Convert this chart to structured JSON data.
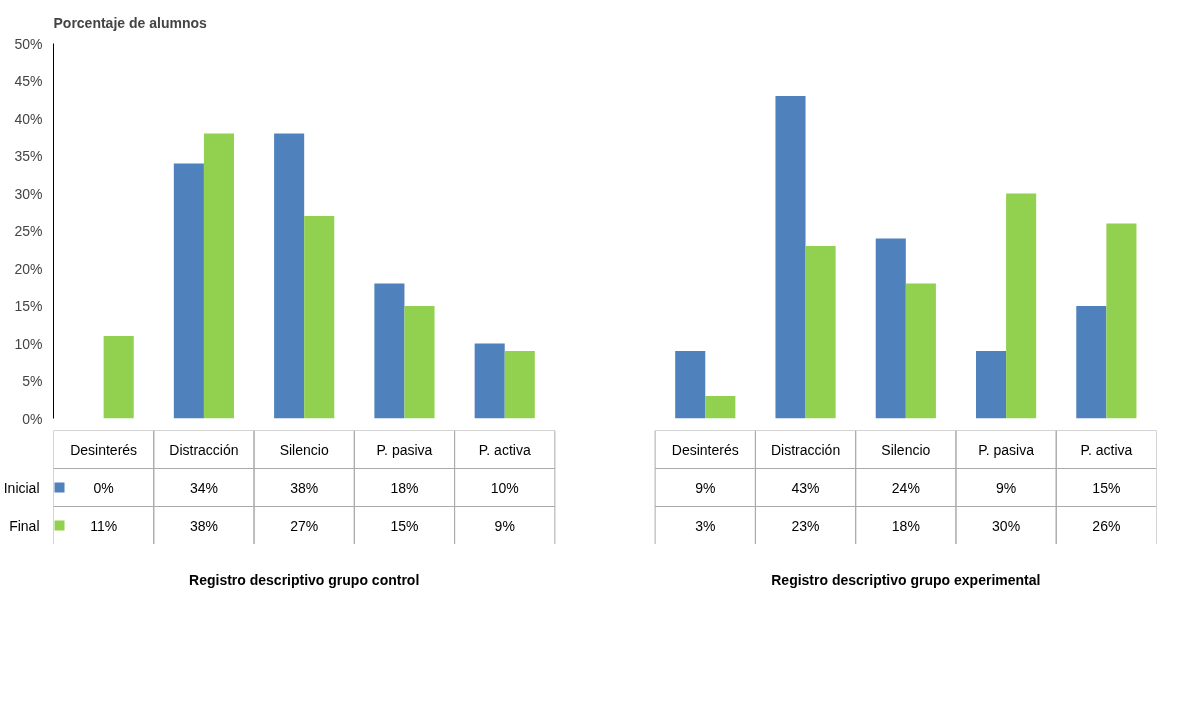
{
  "chart_data": {
    "type": "bar",
    "title": "Porcentaje de alumnos",
    "categories": [
      "Desinterés",
      "Distracción",
      "Silencio",
      "P. pasiva",
      "P. activa",
      null,
      "Desinterés",
      "Distracción",
      "Silencio",
      "P. pasiva",
      "P. activa"
    ],
    "series": [
      {
        "name": "Inicial",
        "color": "#4f81bd",
        "values": [
          0,
          34,
          38,
          18,
          10,
          null,
          9,
          43,
          24,
          9,
          15
        ],
        "value_labels": [
          "0%",
          "34%",
          "38%",
          "18%",
          "10%",
          null,
          "9%",
          "43%",
          "24%",
          "9%",
          "15%"
        ]
      },
      {
        "name": "Final",
        "color": "#92d050",
        "values": [
          11,
          38,
          27,
          15,
          9,
          null,
          3,
          23,
          18,
          30,
          26
        ],
        "value_labels": [
          "11%",
          "38%",
          "27%",
          "15%",
          "9%",
          null,
          "3%",
          "23%",
          "18%",
          "30%",
          "26%"
        ]
      }
    ],
    "ylim": [
      0,
      50
    ],
    "yticks": [
      {
        "value": 0,
        "label": "0%"
      },
      {
        "value": 5,
        "label": "5%"
      },
      {
        "value": 10,
        "label": "10%"
      },
      {
        "value": 15,
        "label": "15%"
      },
      {
        "value": 20,
        "label": "20%"
      },
      {
        "value": 25,
        "label": "25%"
      },
      {
        "value": 30,
        "label": "30%"
      },
      {
        "value": 35,
        "label": "35%"
      },
      {
        "value": 40,
        "label": "40%"
      },
      {
        "value": 45,
        "label": "45%"
      },
      {
        "value": 50,
        "label": "50%"
      }
    ],
    "grid": false,
    "legend": "bottom left",
    "annotations": [
      "Registro descriptivo grupo control",
      "Registro descriptivo grupo experimental"
    ]
  }
}
